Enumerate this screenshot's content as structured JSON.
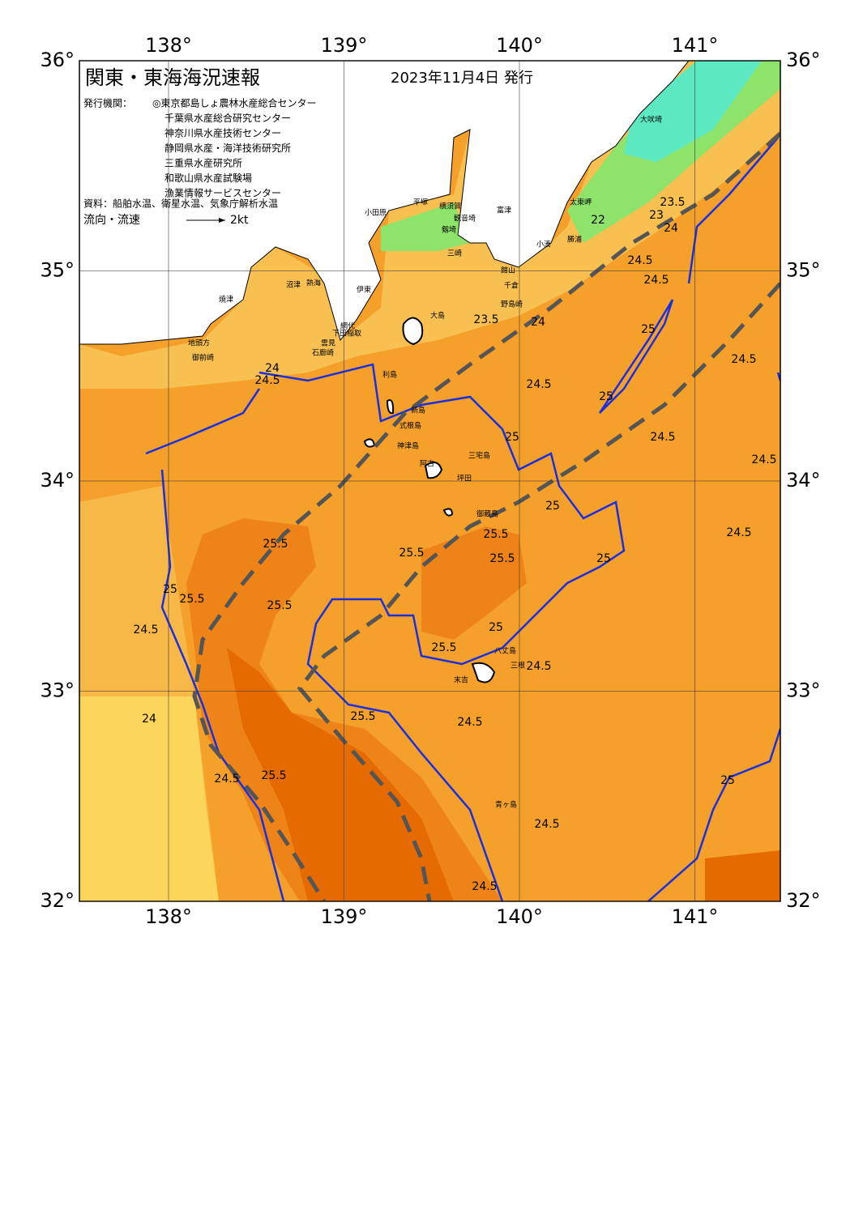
{
  "header": {
    "title": "関東・東海海況速報",
    "date": "2023年11月4日 発行"
  },
  "issuers": {
    "label": "発行機関：",
    "items": [
      "◎東京都島しょ農林水産総合センター",
      "千葉県水産総合研究センター",
      "神奈川県水産技術センター",
      "静岡県水産・海洋技術研究所",
      "三重県水産研究所",
      "和歌山県水産試験場",
      "漁業情報サービスセンター"
    ]
  },
  "source": "資料：船舶水温、衛星水温、気象庁解析水温",
  "legend": {
    "label": "流向・流速",
    "scale": "2kt"
  },
  "map": {
    "lon_ticks": [
      {
        "value": 138,
        "label": "138°"
      },
      {
        "value": 139,
        "label": "139°"
      },
      {
        "value": 140,
        "label": "140°"
      },
      {
        "value": 141,
        "label": "141°"
      }
    ],
    "lat_ticks": [
      {
        "value": 32,
        "label": "32°"
      },
      {
        "value": 33,
        "label": "33°"
      },
      {
        "value": 34,
        "label": "34°"
      },
      {
        "value": 35,
        "label": "35°"
      },
      {
        "value": 36,
        "label": "36°"
      }
    ],
    "places": [
      "大吠埼",
      "太東岬",
      "勝浦",
      "小湊",
      "館山",
      "富津",
      "横須賀",
      "観音埼",
      "剱埼",
      "三崎",
      "千倉",
      "野島崎",
      "平塚",
      "小田原",
      "熱海",
      "伊東",
      "網代",
      "稲取",
      "下田",
      "石廊崎",
      "雲見",
      "沼津",
      "焼津",
      "御前崎",
      "地頭方",
      "大島",
      "利島",
      "新島",
      "式根島",
      "神津島",
      "三宅島",
      "御蔵島",
      "坪田",
      "阿古",
      "八丈島",
      "三根",
      "末吉",
      "青ヶ島"
    ],
    "contour_labels": [
      22,
      23,
      23.5,
      24,
      24.5,
      24.5,
      24,
      23.5,
      24,
      24.5,
      24.5,
      25,
      25,
      24.5,
      24.5,
      24.5,
      25,
      24.5,
      25,
      25,
      25.5,
      25.5,
      25.5,
      25.5,
      25.5,
      25.5,
      25,
      24.5,
      24,
      24.5,
      25.5,
      25.5,
      24.5,
      24.5,
      25.5,
      24.5,
      25,
      25,
      24.5
    ]
  }
}
